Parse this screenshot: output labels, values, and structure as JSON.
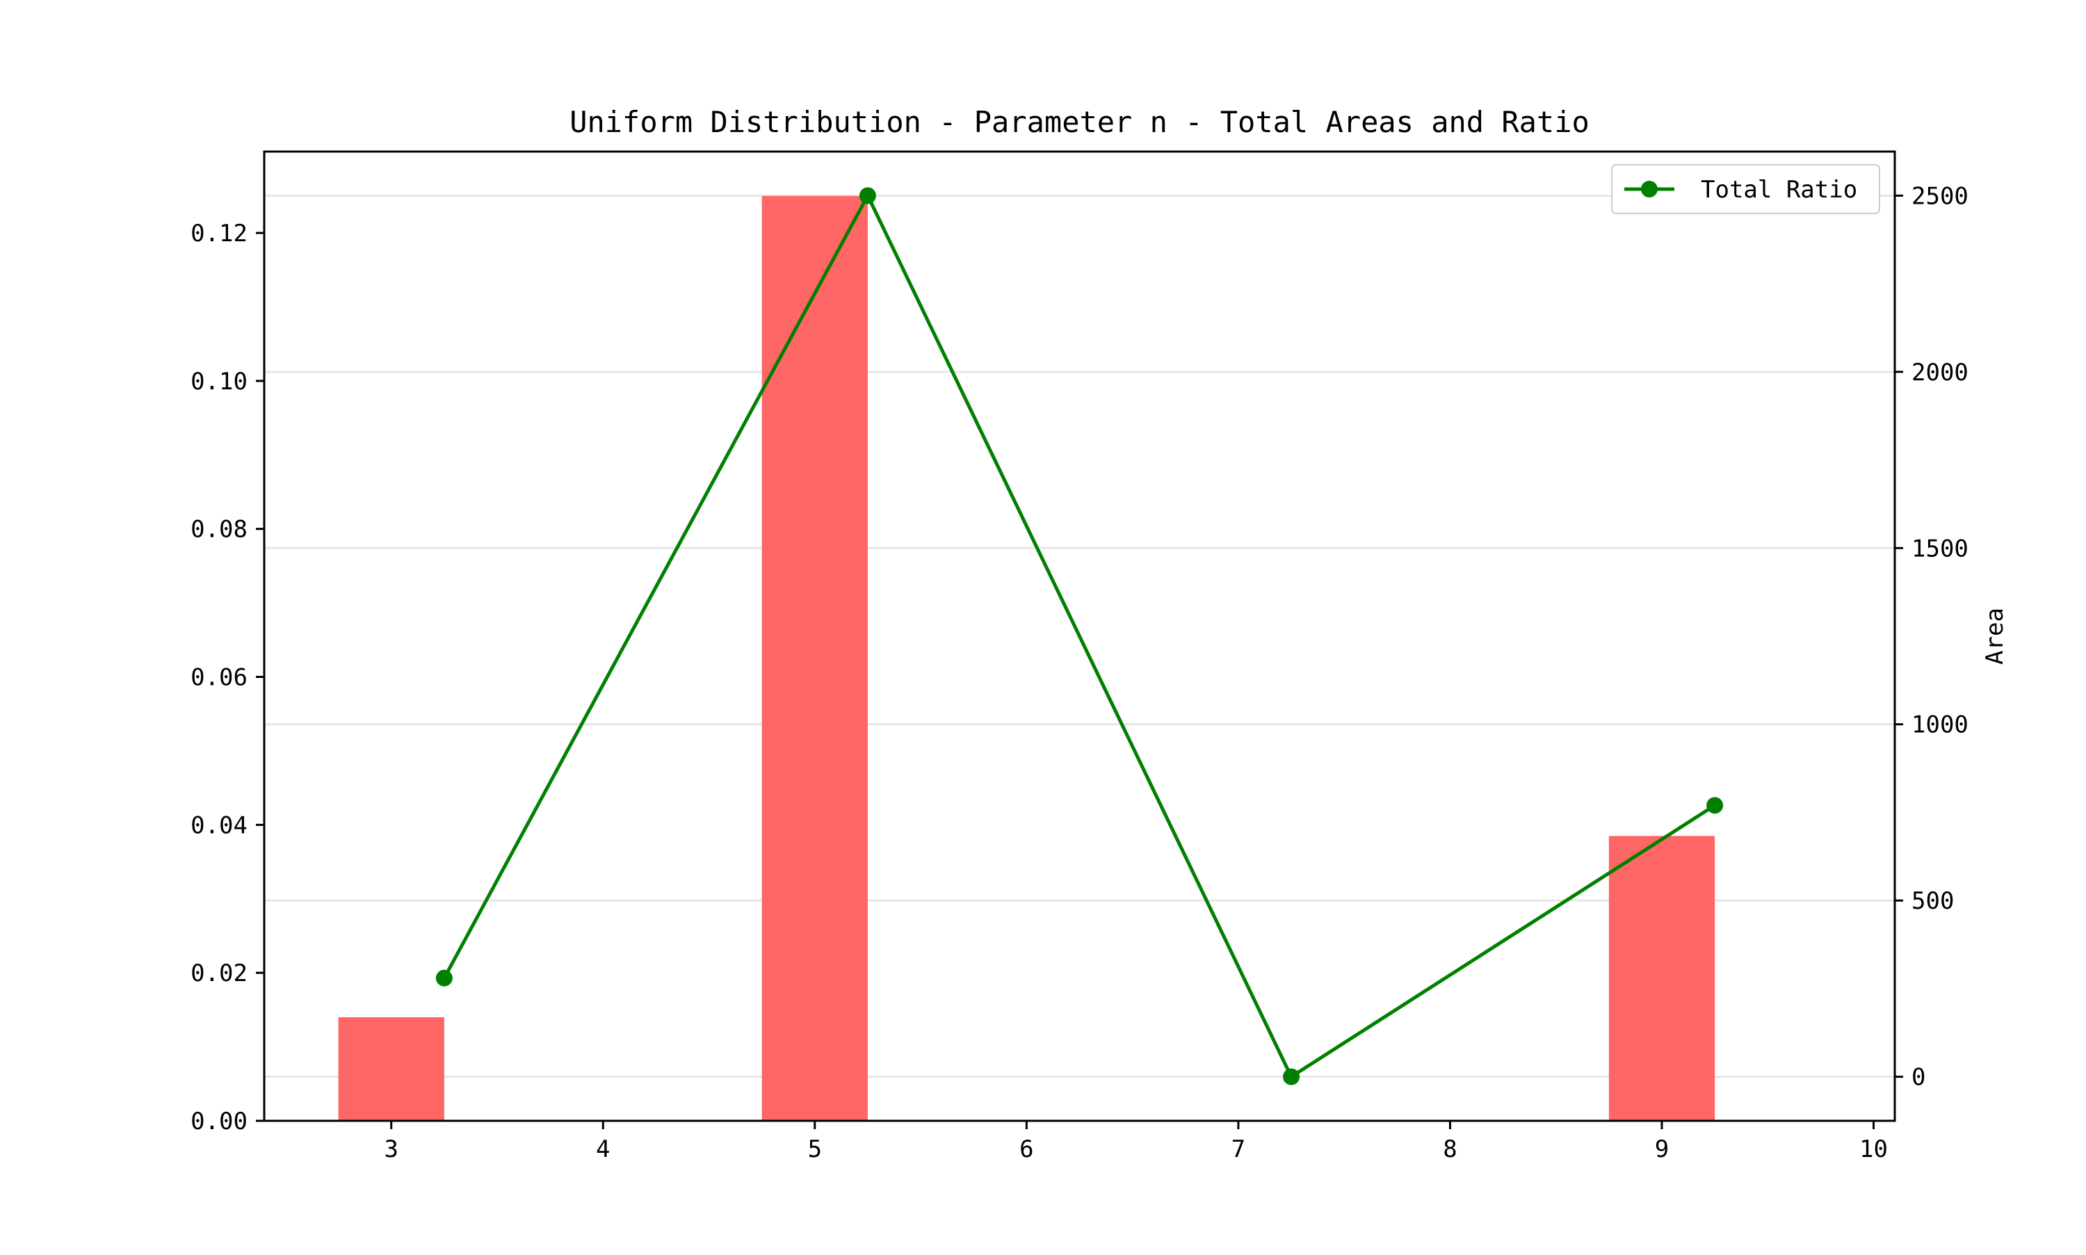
{
  "chart_data": {
    "type": "bar",
    "title": "Uniform Distribution - Parameter n - Total Areas and Ratio",
    "xlabel": "",
    "ylabel_left": "",
    "ylabel_right": "Area",
    "xlim": [
      2.4,
      10.1
    ],
    "ylim_left": [
      0,
      0.131
    ],
    "ylim_right": [
      -125,
      2625
    ],
    "x_ticks": [
      3,
      4,
      5,
      6,
      7,
      8,
      9,
      10
    ],
    "x_tick_labels": [
      "3",
      "4",
      "5",
      "6",
      "7",
      "8",
      "9",
      "10"
    ],
    "y_left_ticks": [
      0.0,
      0.02,
      0.04,
      0.06,
      0.08,
      0.1,
      0.12
    ],
    "y_left_tick_labels": [
      "0.00",
      "0.02",
      "0.04",
      "0.06",
      "0.08",
      "0.10",
      "0.12"
    ],
    "y_right_ticks": [
      0,
      500,
      1000,
      1500,
      2000,
      2500
    ],
    "y_right_tick_labels": [
      "0",
      "500",
      "1000",
      "1500",
      "2000",
      "2500"
    ],
    "grid": "horizontal, right axis",
    "legend_position": "top-right",
    "bars": {
      "axis": "left",
      "x": [
        3,
        5,
        7,
        9
      ],
      "values": [
        0.014,
        0.125,
        0.0,
        0.0385
      ],
      "color": "#ff6666"
    },
    "series": [
      {
        "name": "Total Ratio",
        "type": "line",
        "axis": "right",
        "x": [
          3.25,
          5.25,
          7.25,
          9.25
        ],
        "values": [
          280,
          2500,
          0,
          770
        ],
        "color": "#008000"
      }
    ]
  }
}
